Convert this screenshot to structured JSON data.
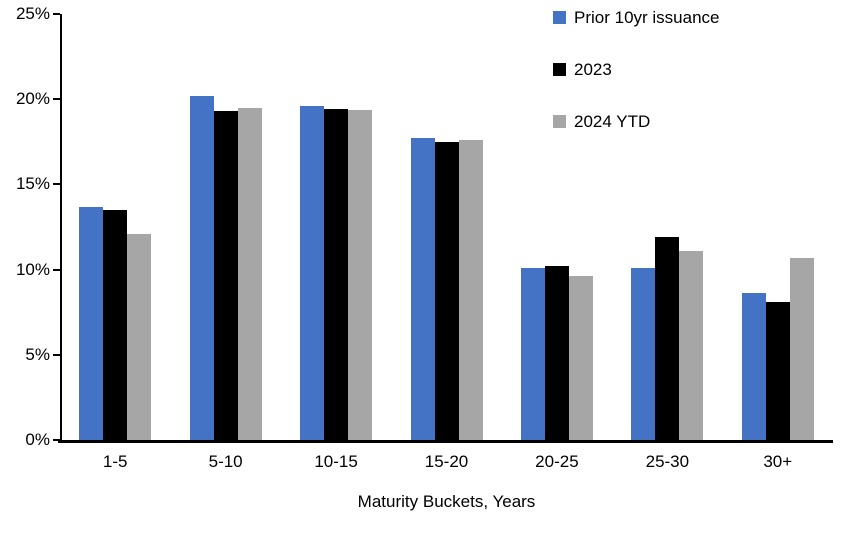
{
  "chart_data": {
    "type": "bar",
    "title": "",
    "xlabel": "Maturity Buckets, Years",
    "ylabel": "",
    "ylim": [
      0,
      25
    ],
    "yticks": [
      0,
      5,
      10,
      15,
      20,
      25
    ],
    "ytick_labels": [
      "0%",
      "5%",
      "10%",
      "15%",
      "20%",
      "25%"
    ],
    "grid": false,
    "legend_position": "top-right",
    "categories": [
      "1-5",
      "5-10",
      "10-15",
      "15-20",
      "20-25",
      "25-30",
      "30+"
    ],
    "series": [
      {
        "name": "Prior 10yr issuance",
        "color": "#4472C4",
        "values": [
          13.7,
          20.2,
          19.6,
          17.7,
          10.1,
          10.1,
          8.6
        ]
      },
      {
        "name": "2023",
        "color": "#000000",
        "values": [
          13.5,
          19.3,
          19.45,
          17.5,
          10.2,
          11.9,
          8.1
        ]
      },
      {
        "name": "2024 YTD",
        "color": "#A6A6A6",
        "values": [
          12.1,
          19.5,
          19.35,
          17.6,
          9.6,
          11.1,
          10.7
        ]
      }
    ]
  }
}
